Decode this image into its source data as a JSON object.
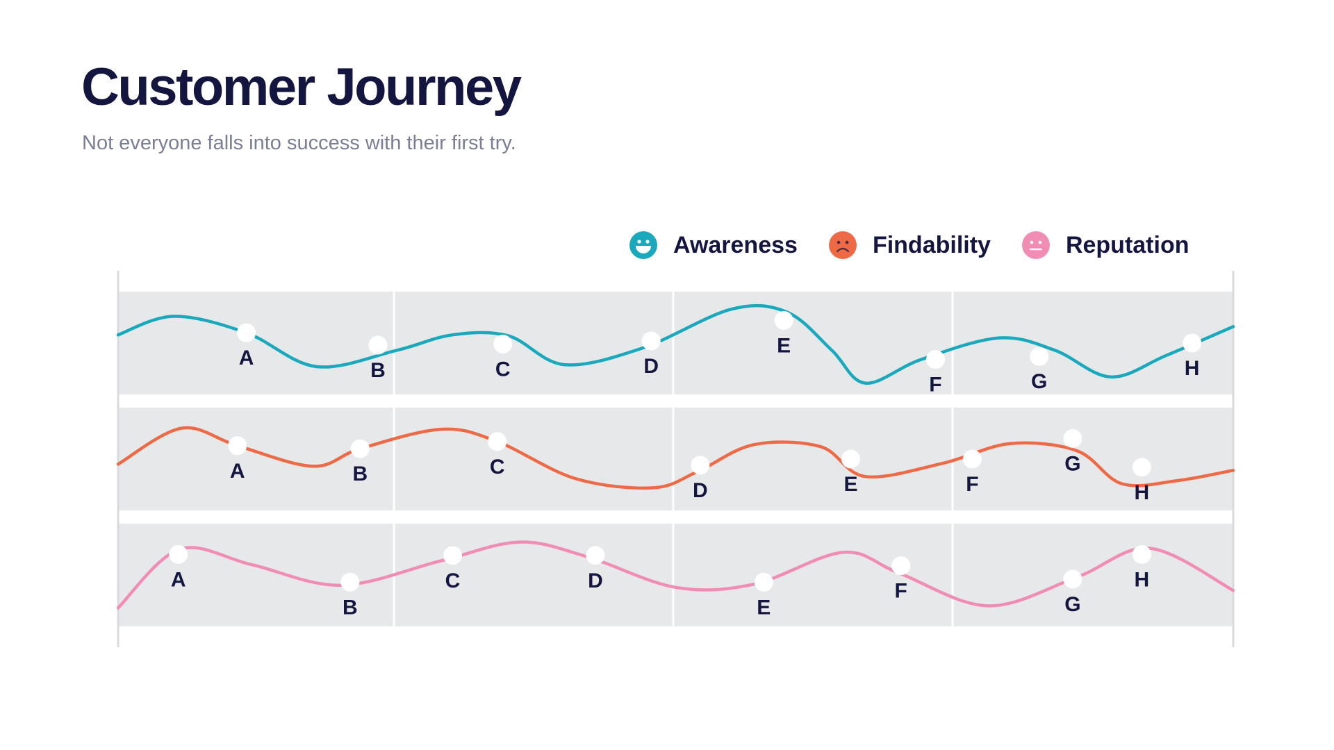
{
  "header": {
    "title": "Customer Journey",
    "subtitle": "Not everyone falls into success with their first try."
  },
  "legend": [
    {
      "label": "Awareness",
      "color": "#1aa8bd",
      "icon": "happy-face-icon"
    },
    {
      "label": "Findability",
      "color": "#ee6a47",
      "icon": "sad-face-icon"
    },
    {
      "label": "Reputation",
      "color": "#f18db5",
      "icon": "neutral-face-icon"
    }
  ],
  "colors": {
    "band": "#e7e8ea",
    "marker": "#ffffff",
    "text": "#14163f"
  },
  "chart_data": {
    "type": "line",
    "x_range": [
      0,
      1
    ],
    "y_range": [
      0,
      1
    ],
    "grid": true,
    "legend_placement": "top-right",
    "series": [
      {
        "name": "Awareness",
        "color": "#1aa8bd",
        "curve": [
          [
            0.0,
            0.58
          ],
          [
            0.05,
            0.76
          ],
          [
            0.115,
            0.6
          ],
          [
            0.178,
            0.27
          ],
          [
            0.25,
            0.43
          ],
          [
            0.3,
            0.58
          ],
          [
            0.35,
            0.57
          ],
          [
            0.4,
            0.29
          ],
          [
            0.47,
            0.45
          ],
          [
            0.55,
            0.83
          ],
          [
            0.6,
            0.8
          ],
          [
            0.64,
            0.43
          ],
          [
            0.67,
            0.11
          ],
          [
            0.72,
            0.34
          ],
          [
            0.79,
            0.55
          ],
          [
            0.84,
            0.43
          ],
          [
            0.89,
            0.17
          ],
          [
            0.94,
            0.38
          ],
          [
            1.0,
            0.66
          ]
        ],
        "points": [
          {
            "label": "A",
            "x": 0.115,
            "y": 0.6
          },
          {
            "label": "B",
            "x": 0.233,
            "y": 0.48
          },
          {
            "label": "C",
            "x": 0.345,
            "y": 0.49
          },
          {
            "label": "D",
            "x": 0.478,
            "y": 0.52
          },
          {
            "label": "E",
            "x": 0.597,
            "y": 0.72
          },
          {
            "label": "F",
            "x": 0.733,
            "y": 0.34
          },
          {
            "label": "G",
            "x": 0.826,
            "y": 0.37
          },
          {
            "label": "H",
            "x": 0.963,
            "y": 0.5
          }
        ]
      },
      {
        "name": "Findability",
        "color": "#ee6a47",
        "curve": [
          [
            0.0,
            0.45
          ],
          [
            0.057,
            0.8
          ],
          [
            0.107,
            0.63
          ],
          [
            0.175,
            0.43
          ],
          [
            0.217,
            0.6
          ],
          [
            0.29,
            0.79
          ],
          [
            0.34,
            0.67
          ],
          [
            0.41,
            0.31
          ],
          [
            0.48,
            0.22
          ],
          [
            0.52,
            0.38
          ],
          [
            0.57,
            0.64
          ],
          [
            0.63,
            0.62
          ],
          [
            0.67,
            0.33
          ],
          [
            0.74,
            0.46
          ],
          [
            0.8,
            0.65
          ],
          [
            0.86,
            0.58
          ],
          [
            0.9,
            0.26
          ],
          [
            0.95,
            0.29
          ],
          [
            1.0,
            0.39
          ]
        ],
        "points": [
          {
            "label": "A",
            "x": 0.107,
            "y": 0.63
          },
          {
            "label": "B",
            "x": 0.217,
            "y": 0.6
          },
          {
            "label": "C",
            "x": 0.34,
            "y": 0.67
          },
          {
            "label": "D",
            "x": 0.522,
            "y": 0.44
          },
          {
            "label": "E",
            "x": 0.657,
            "y": 0.5
          },
          {
            "label": "F",
            "x": 0.766,
            "y": 0.5
          },
          {
            "label": "G",
            "x": 0.856,
            "y": 0.7
          },
          {
            "label": "H",
            "x": 0.918,
            "y": 0.42
          }
        ]
      },
      {
        "name": "Reputation",
        "color": "#f18db5",
        "curve": [
          [
            0.0,
            0.18
          ],
          [
            0.055,
            0.75
          ],
          [
            0.12,
            0.6
          ],
          [
            0.2,
            0.4
          ],
          [
            0.29,
            0.64
          ],
          [
            0.36,
            0.82
          ],
          [
            0.42,
            0.68
          ],
          [
            0.5,
            0.38
          ],
          [
            0.57,
            0.41
          ],
          [
            0.65,
            0.72
          ],
          [
            0.7,
            0.52
          ],
          [
            0.78,
            0.2
          ],
          [
            0.86,
            0.48
          ],
          [
            0.925,
            0.76
          ],
          [
            1.0,
            0.35
          ]
        ],
        "points": [
          {
            "label": "A",
            "x": 0.054,
            "y": 0.7
          },
          {
            "label": "B",
            "x": 0.208,
            "y": 0.43
          },
          {
            "label": "C",
            "x": 0.3,
            "y": 0.69
          },
          {
            "label": "D",
            "x": 0.428,
            "y": 0.69
          },
          {
            "label": "E",
            "x": 0.579,
            "y": 0.43
          },
          {
            "label": "F",
            "x": 0.702,
            "y": 0.59
          },
          {
            "label": "G",
            "x": 0.856,
            "y": 0.46
          },
          {
            "label": "H",
            "x": 0.918,
            "y": 0.7
          }
        ]
      }
    ]
  }
}
